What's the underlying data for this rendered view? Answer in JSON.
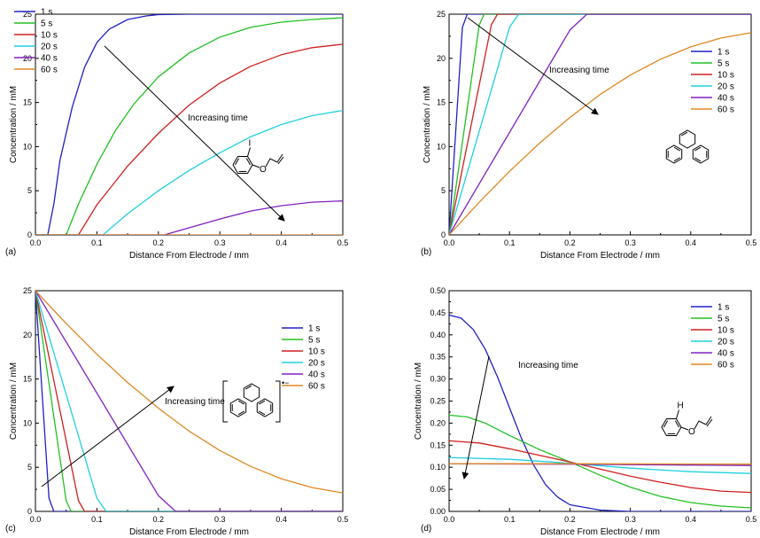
{
  "chart_data": [
    {
      "type": "line",
      "panel_label": "(a)",
      "xlabel": "Distance From Electrode / mm",
      "ylabel": "Concentration / mM",
      "xlim": [
        0,
        0.5
      ],
      "ylim": [
        0,
        25
      ],
      "xticks": [
        "0.0",
        "0.1",
        "0.2",
        "0.3",
        "0.4",
        "0.5"
      ],
      "yticks": [
        "0",
        "5",
        "10",
        "15",
        "20",
        "25"
      ],
      "legend_position": "top-left",
      "annotation": "Increasing time",
      "molecule": "2-iodophenyl allyl ether",
      "molecule_labels": [
        "I",
        "O"
      ],
      "series": [
        {
          "name": "1 s",
          "color": "#2020c8",
          "x": [
            0,
            0.02,
            0.03,
            0.04,
            0.06,
            0.08,
            0.1,
            0.12,
            0.15,
            0.18,
            0.2,
            0.25,
            0.5
          ],
          "y": [
            0,
            0,
            3.5,
            8.5,
            14.5,
            19,
            21.8,
            23.3,
            24.4,
            24.8,
            24.95,
            25,
            25
          ]
        },
        {
          "name": "5 s",
          "color": "#22c022",
          "x": [
            0,
            0.05,
            0.07,
            0.1,
            0.13,
            0.16,
            0.2,
            0.25,
            0.3,
            0.35,
            0.4,
            0.45,
            0.5
          ],
          "y": [
            0,
            0,
            3.5,
            8,
            11.8,
            14.8,
            17.9,
            20.6,
            22.4,
            23.5,
            24.1,
            24.4,
            24.6
          ]
        },
        {
          "name": "10 s",
          "color": "#d02020",
          "x": [
            0,
            0.07,
            0.1,
            0.15,
            0.2,
            0.25,
            0.3,
            0.35,
            0.4,
            0.45,
            0.5
          ],
          "y": [
            0,
            0,
            3.4,
            7.8,
            11.5,
            14.7,
            17.2,
            19.1,
            20.4,
            21.2,
            21.6
          ]
        },
        {
          "name": "20 s",
          "color": "#20d0e0",
          "x": [
            0,
            0.11,
            0.15,
            0.2,
            0.25,
            0.3,
            0.35,
            0.4,
            0.45,
            0.5
          ],
          "y": [
            0,
            0,
            2.4,
            5,
            7.3,
            9.3,
            11.1,
            12.5,
            13.5,
            14.1
          ]
        },
        {
          "name": "40 s",
          "color": "#8020c0",
          "x": [
            0,
            0.21,
            0.25,
            0.3,
            0.35,
            0.4,
            0.45,
            0.5
          ],
          "y": [
            0,
            0,
            0.8,
            1.8,
            2.7,
            3.3,
            3.7,
            3.85
          ]
        },
        {
          "name": "60 s",
          "color": "#e08820",
          "x": [
            0,
            0.5
          ],
          "y": [
            0,
            0
          ]
        }
      ]
    },
    {
      "type": "line",
      "panel_label": "(b)",
      "xlabel": "Distance From Electrode / mm",
      "ylabel": "Concentration / mM",
      "xlim": [
        0,
        0.5
      ],
      "ylim": [
        0,
        25
      ],
      "xticks": [
        "0.0",
        "0.1",
        "0.2",
        "0.3",
        "0.4",
        "0.5"
      ],
      "yticks": [
        "0",
        "5",
        "10",
        "15",
        "20",
        "25"
      ],
      "legend_position": "right",
      "annotation": "Increasing time",
      "molecule": "phenanthrene",
      "molecule_labels": [],
      "series": [
        {
          "name": "1 s",
          "color": "#2020c8",
          "x": [
            0,
            0.022,
            0.03,
            0.5
          ],
          "y": [
            0,
            23.5,
            25,
            25
          ]
        },
        {
          "name": "5 s",
          "color": "#22c022",
          "x": [
            0,
            0.05,
            0.058,
            0.5
          ],
          "y": [
            0,
            23.8,
            25,
            25
          ]
        },
        {
          "name": "10 s",
          "color": "#d02020",
          "x": [
            0,
            0.07,
            0.08,
            0.5
          ],
          "y": [
            0,
            23.8,
            25,
            25
          ]
        },
        {
          "name": "20 s",
          "color": "#20d0e0",
          "x": [
            0,
            0.1,
            0.115,
            0.5
          ],
          "y": [
            0,
            23.5,
            25,
            25
          ]
        },
        {
          "name": "40 s",
          "color": "#8020c0",
          "x": [
            0,
            0.2,
            0.228,
            0.5
          ],
          "y": [
            0,
            23.2,
            25,
            25
          ]
        },
        {
          "name": "60 s",
          "color": "#e08820",
          "x": [
            0,
            0.05,
            0.1,
            0.15,
            0.2,
            0.25,
            0.3,
            0.35,
            0.4,
            0.45,
            0.5
          ],
          "y": [
            0,
            3.7,
            7.2,
            10.4,
            13.3,
            15.9,
            18.1,
            19.9,
            21.3,
            22.3,
            22.9
          ]
        }
      ]
    },
    {
      "type": "line",
      "panel_label": "(c)",
      "xlabel": "Distance From Electrode / mm",
      "ylabel": "Concentration / mM",
      "xlim": [
        0,
        0.5
      ],
      "ylim": [
        0,
        25
      ],
      "xticks": [
        "0.0",
        "0.1",
        "0.2",
        "0.3",
        "0.4",
        "0.5"
      ],
      "yticks": [
        "0",
        "5",
        "10",
        "15",
        "20",
        "25"
      ],
      "legend_position": "right",
      "annotation": "Increasing time",
      "molecule": "phenanthrene radical anion",
      "molecule_labels": [
        "•−"
      ],
      "series": [
        {
          "name": "1 s",
          "color": "#2020c8",
          "x": [
            0,
            0.022,
            0.03,
            0.5
          ],
          "y": [
            25,
            1.5,
            0,
            0
          ]
        },
        {
          "name": "5 s",
          "color": "#22c022",
          "x": [
            0,
            0.05,
            0.058,
            0.5
          ],
          "y": [
            25,
            1.2,
            0,
            0
          ]
        },
        {
          "name": "10 s",
          "color": "#d02020",
          "x": [
            0,
            0.07,
            0.08,
            0.5
          ],
          "y": [
            25,
            1.2,
            0,
            0
          ]
        },
        {
          "name": "20 s",
          "color": "#20d0e0",
          "x": [
            0,
            0.1,
            0.115,
            0.5
          ],
          "y": [
            25,
            1.5,
            0,
            0
          ]
        },
        {
          "name": "40 s",
          "color": "#8020c0",
          "x": [
            0,
            0.2,
            0.228,
            0.5
          ],
          "y": [
            25,
            1.8,
            0,
            0
          ]
        },
        {
          "name": "60 s",
          "color": "#e08820",
          "x": [
            0,
            0.05,
            0.1,
            0.15,
            0.2,
            0.25,
            0.3,
            0.35,
            0.4,
            0.45,
            0.5
          ],
          "y": [
            25,
            21.3,
            17.8,
            14.6,
            11.7,
            9.1,
            6.9,
            5.1,
            3.7,
            2.7,
            2.1
          ]
        }
      ]
    },
    {
      "type": "line",
      "panel_label": "(d)",
      "xlabel": "Distance From Electrode / mm",
      "ylabel": "Concentration / mM",
      "xlim": [
        0,
        0.5
      ],
      "ylim": [
        0,
        0.5
      ],
      "xticks": [
        "0.0",
        "0.1",
        "0.2",
        "0.3",
        "0.4",
        "0.5"
      ],
      "yticks": [
        "0.00",
        "0.05",
        "0.10",
        "0.15",
        "0.20",
        "0.25",
        "0.30",
        "0.35",
        "0.40",
        "0.45",
        "0.50"
      ],
      "legend_position": "top-right",
      "annotation": "Increasing time",
      "molecule": "phenyl allyl ether",
      "molecule_labels": [
        "H",
        "O"
      ],
      "series": [
        {
          "name": "1 s",
          "color": "#2020c8",
          "x": [
            0,
            0.02,
            0.04,
            0.06,
            0.08,
            0.1,
            0.12,
            0.14,
            0.16,
            0.18,
            0.2,
            0.25,
            0.3,
            0.5
          ],
          "y": [
            0.445,
            0.438,
            0.412,
            0.367,
            0.305,
            0.235,
            0.165,
            0.105,
            0.06,
            0.032,
            0.015,
            0.003,
            0,
            0
          ]
        },
        {
          "name": "5 s",
          "color": "#22c022",
          "x": [
            0,
            0.03,
            0.06,
            0.1,
            0.15,
            0.2,
            0.25,
            0.3,
            0.35,
            0.4,
            0.45,
            0.5
          ],
          "y": [
            0.218,
            0.214,
            0.2,
            0.172,
            0.14,
            0.112,
            0.082,
            0.055,
            0.034,
            0.02,
            0.012,
            0.008
          ]
        },
        {
          "name": "10 s",
          "color": "#d02020",
          "x": [
            0,
            0.05,
            0.1,
            0.15,
            0.2,
            0.25,
            0.3,
            0.35,
            0.4,
            0.45,
            0.5
          ],
          "y": [
            0.16,
            0.155,
            0.142,
            0.127,
            0.112,
            0.096,
            0.08,
            0.066,
            0.054,
            0.046,
            0.043
          ]
        },
        {
          "name": "20 s",
          "color": "#20d0e0",
          "x": [
            0,
            0.1,
            0.2,
            0.3,
            0.4,
            0.5
          ],
          "y": [
            0.122,
            0.118,
            0.109,
            0.098,
            0.09,
            0.086
          ]
        },
        {
          "name": "40 s",
          "color": "#8020c0",
          "x": [
            0,
            0.2,
            0.5
          ],
          "y": [
            0.108,
            0.107,
            0.104
          ]
        },
        {
          "name": "60 s",
          "color": "#e08820",
          "x": [
            0,
            0.2,
            0.5
          ],
          "y": [
            0.108,
            0.108,
            0.107
          ]
        }
      ]
    }
  ]
}
